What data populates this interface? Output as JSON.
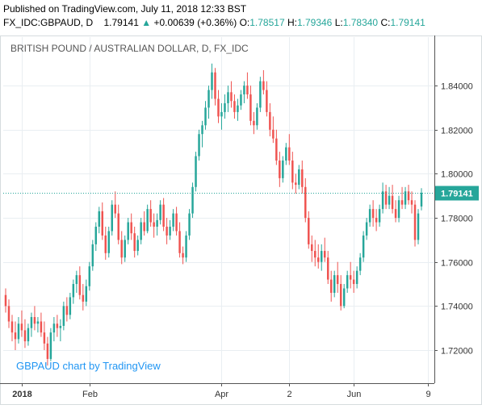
{
  "header": {
    "published": "Published on TradingView.com, July 11, 2018 12:33 BST",
    "symbol": "FX_IDC:GBPAUD, D",
    "last": "1.79141",
    "change_arrow": "▲",
    "change": "+0.00639 (+0.36%)",
    "o_label": "O:",
    "o_value": "1.78517",
    "h_label": "H:",
    "h_value": "1.79346",
    "l_label": "L:",
    "l_value": "1.78340",
    "c_label": "C:",
    "c_value": "1.79141"
  },
  "colors": {
    "up": "#26a69a",
    "down": "#ef5350",
    "grid": "#e9eef2",
    "last_line": "#26a69a",
    "watermark": "#2196f3"
  },
  "chart_data": {
    "type": "candlestick",
    "title": "BRITISH POUND / AUSTRALIAN DOLLAR, D, FX_IDC",
    "watermark": "GBPAUD chart by TradingView",
    "last_price_label": "1.79141",
    "last_price": 1.79141,
    "ylim": [
      1.705,
      1.862
    ],
    "y_ticks": [
      "1.84000",
      "1.82000",
      "1.80000",
      "1.78000",
      "1.76000",
      "1.74000",
      "1.72000"
    ],
    "y_tick_values": [
      1.84,
      1.82,
      1.8,
      1.78,
      1.76,
      1.74,
      1.72
    ],
    "x_ticks": [
      {
        "label": "2018",
        "index": 5
      },
      {
        "label": "Feb",
        "index": 26
      },
      {
        "label": "Apr",
        "index": 67
      },
      {
        "label": "2",
        "index": 88
      },
      {
        "label": "Jun",
        "index": 108
      },
      {
        "label": "9",
        "index": 131
      }
    ],
    "candles": [
      [
        1.745,
        1.748,
        1.737,
        1.74
      ],
      [
        1.74,
        1.743,
        1.73,
        1.733
      ],
      [
        1.733,
        1.736,
        1.724,
        1.728
      ],
      [
        1.728,
        1.733,
        1.72,
        1.725
      ],
      [
        1.725,
        1.735,
        1.723,
        1.732
      ],
      [
        1.732,
        1.738,
        1.726,
        1.729
      ],
      [
        1.729,
        1.734,
        1.721,
        1.724
      ],
      [
        1.724,
        1.732,
        1.722,
        1.73
      ],
      [
        1.73,
        1.737,
        1.726,
        1.735
      ],
      [
        1.735,
        1.74,
        1.729,
        1.732
      ],
      [
        1.732,
        1.735,
        1.728,
        1.733
      ],
      [
        1.733,
        1.737,
        1.726,
        1.728
      ],
      [
        1.728,
        1.733,
        1.72,
        1.723
      ],
      [
        1.723,
        1.726,
        1.713,
        1.716
      ],
      [
        1.716,
        1.73,
        1.715,
        1.728
      ],
      [
        1.728,
        1.735,
        1.724,
        1.732
      ],
      [
        1.732,
        1.736,
        1.726,
        1.73
      ],
      [
        1.73,
        1.734,
        1.724,
        1.731
      ],
      [
        1.731,
        1.742,
        1.729,
        1.74
      ],
      [
        1.74,
        1.744,
        1.733,
        1.736
      ],
      [
        1.736,
        1.746,
        1.734,
        1.744
      ],
      [
        1.744,
        1.752,
        1.741,
        1.75
      ],
      [
        1.75,
        1.756,
        1.746,
        1.754
      ],
      [
        1.754,
        1.758,
        1.743,
        1.745
      ],
      [
        1.745,
        1.75,
        1.738,
        1.742
      ],
      [
        1.742,
        1.752,
        1.74,
        1.749
      ],
      [
        1.749,
        1.76,
        1.747,
        1.758
      ],
      [
        1.758,
        1.77,
        1.756,
        1.768
      ],
      [
        1.768,
        1.778,
        1.765,
        1.776
      ],
      [
        1.776,
        1.785,
        1.773,
        1.783
      ],
      [
        1.783,
        1.787,
        1.77,
        1.772
      ],
      [
        1.772,
        1.776,
        1.761,
        1.764
      ],
      [
        1.764,
        1.776,
        1.762,
        1.774
      ],
      [
        1.774,
        1.788,
        1.772,
        1.786
      ],
      [
        1.786,
        1.792,
        1.78,
        1.782
      ],
      [
        1.782,
        1.786,
        1.768,
        1.77
      ],
      [
        1.77,
        1.774,
        1.759,
        1.762
      ],
      [
        1.762,
        1.772,
        1.76,
        1.77
      ],
      [
        1.77,
        1.78,
        1.768,
        1.778
      ],
      [
        1.778,
        1.782,
        1.77,
        1.773
      ],
      [
        1.773,
        1.776,
        1.762,
        1.765
      ],
      [
        1.765,
        1.772,
        1.763,
        1.77
      ],
      [
        1.77,
        1.78,
        1.768,
        1.778
      ],
      [
        1.778,
        1.783,
        1.772,
        1.774
      ],
      [
        1.774,
        1.786,
        1.773,
        1.784
      ],
      [
        1.784,
        1.788,
        1.776,
        1.778
      ],
      [
        1.778,
        1.782,
        1.771,
        1.776
      ],
      [
        1.776,
        1.782,
        1.772,
        1.779
      ],
      [
        1.779,
        1.788,
        1.777,
        1.786
      ],
      [
        1.786,
        1.789,
        1.774,
        1.776
      ],
      [
        1.776,
        1.78,
        1.768,
        1.772
      ],
      [
        1.772,
        1.779,
        1.77,
        1.776
      ],
      [
        1.776,
        1.784,
        1.774,
        1.782
      ],
      [
        1.782,
        1.785,
        1.772,
        1.774
      ],
      [
        1.774,
        1.778,
        1.762,
        1.764
      ],
      [
        1.764,
        1.767,
        1.759,
        1.762
      ],
      [
        1.762,
        1.774,
        1.76,
        1.772
      ],
      [
        1.772,
        1.784,
        1.77,
        1.782
      ],
      [
        1.782,
        1.796,
        1.78,
        1.794
      ],
      [
        1.794,
        1.81,
        1.792,
        1.808
      ],
      [
        1.808,
        1.82,
        1.806,
        1.818
      ],
      [
        1.818,
        1.824,
        1.812,
        1.822
      ],
      [
        1.822,
        1.833,
        1.82,
        1.83
      ],
      [
        1.83,
        1.84,
        1.825,
        1.838
      ],
      [
        1.838,
        1.85,
        1.834,
        1.846
      ],
      [
        1.846,
        1.848,
        1.831,
        1.834
      ],
      [
        1.834,
        1.838,
        1.823,
        1.826
      ],
      [
        1.826,
        1.832,
        1.82,
        1.828
      ],
      [
        1.828,
        1.836,
        1.825,
        1.832
      ],
      [
        1.832,
        1.84,
        1.828,
        1.837
      ],
      [
        1.837,
        1.842,
        1.83,
        1.833
      ],
      [
        1.833,
        1.836,
        1.825,
        1.828
      ],
      [
        1.828,
        1.834,
        1.824,
        1.831
      ],
      [
        1.831,
        1.838,
        1.829,
        1.836
      ],
      [
        1.836,
        1.842,
        1.832,
        1.84
      ],
      [
        1.84,
        1.846,
        1.834,
        1.836
      ],
      [
        1.836,
        1.84,
        1.822,
        1.824
      ],
      [
        1.824,
        1.828,
        1.818,
        1.822
      ],
      [
        1.822,
        1.832,
        1.82,
        1.83
      ],
      [
        1.83,
        1.844,
        1.828,
        1.842
      ],
      [
        1.842,
        1.847,
        1.836,
        1.838
      ],
      [
        1.838,
        1.842,
        1.826,
        1.828
      ],
      [
        1.828,
        1.832,
        1.817,
        1.82
      ],
      [
        1.82,
        1.826,
        1.814,
        1.816
      ],
      [
        1.816,
        1.82,
        1.804,
        1.806
      ],
      [
        1.806,
        1.81,
        1.794,
        1.798
      ],
      [
        1.798,
        1.808,
        1.796,
        1.806
      ],
      [
        1.806,
        1.814,
        1.804,
        1.812
      ],
      [
        1.812,
        1.818,
        1.804,
        1.806
      ],
      [
        1.806,
        1.81,
        1.793,
        1.796
      ],
      [
        1.796,
        1.8,
        1.791,
        1.795
      ],
      [
        1.795,
        1.804,
        1.793,
        1.802
      ],
      [
        1.802,
        1.806,
        1.791,
        1.794
      ],
      [
        1.794,
        1.798,
        1.778,
        1.78
      ],
      [
        1.78,
        1.783,
        1.766,
        1.768
      ],
      [
        1.768,
        1.772,
        1.76,
        1.765
      ],
      [
        1.765,
        1.77,
        1.758,
        1.762
      ],
      [
        1.762,
        1.768,
        1.757,
        1.76
      ],
      [
        1.76,
        1.768,
        1.756,
        1.765
      ],
      [
        1.765,
        1.771,
        1.76,
        1.762
      ],
      [
        1.762,
        1.765,
        1.75,
        1.752
      ],
      [
        1.752,
        1.756,
        1.742,
        1.746
      ],
      [
        1.746,
        1.756,
        1.744,
        1.754
      ],
      [
        1.754,
        1.76,
        1.746,
        1.75
      ],
      [
        1.75,
        1.754,
        1.738,
        1.74
      ],
      [
        1.74,
        1.75,
        1.739,
        1.748
      ],
      [
        1.748,
        1.756,
        1.746,
        1.754
      ],
      [
        1.754,
        1.76,
        1.748,
        1.752
      ],
      [
        1.752,
        1.756,
        1.746,
        1.75
      ],
      [
        1.75,
        1.758,
        1.748,
        1.756
      ],
      [
        1.756,
        1.764,
        1.754,
        1.762
      ],
      [
        1.762,
        1.774,
        1.76,
        1.772
      ],
      [
        1.772,
        1.78,
        1.77,
        1.778
      ],
      [
        1.778,
        1.786,
        1.776,
        1.784
      ],
      [
        1.784,
        1.788,
        1.776,
        1.78
      ],
      [
        1.78,
        1.784,
        1.774,
        1.778
      ],
      [
        1.778,
        1.786,
        1.776,
        1.784
      ],
      [
        1.784,
        1.796,
        1.782,
        1.792
      ],
      [
        1.792,
        1.795,
        1.784,
        1.786
      ],
      [
        1.786,
        1.794,
        1.784,
        1.79
      ],
      [
        1.79,
        1.795,
        1.782,
        1.784
      ],
      [
        1.784,
        1.788,
        1.778,
        1.78
      ],
      [
        1.78,
        1.79,
        1.778,
        1.788
      ],
      [
        1.788,
        1.794,
        1.784,
        1.786
      ],
      [
        1.786,
        1.794,
        1.784,
        1.792
      ],
      [
        1.792,
        1.795,
        1.786,
        1.788
      ],
      [
        1.788,
        1.792,
        1.782,
        1.786
      ],
      [
        1.786,
        1.788,
        1.767,
        1.77
      ],
      [
        1.77,
        1.784,
        1.768,
        1.782
      ],
      [
        1.78517,
        1.79346,
        1.7834,
        1.79141
      ]
    ]
  }
}
